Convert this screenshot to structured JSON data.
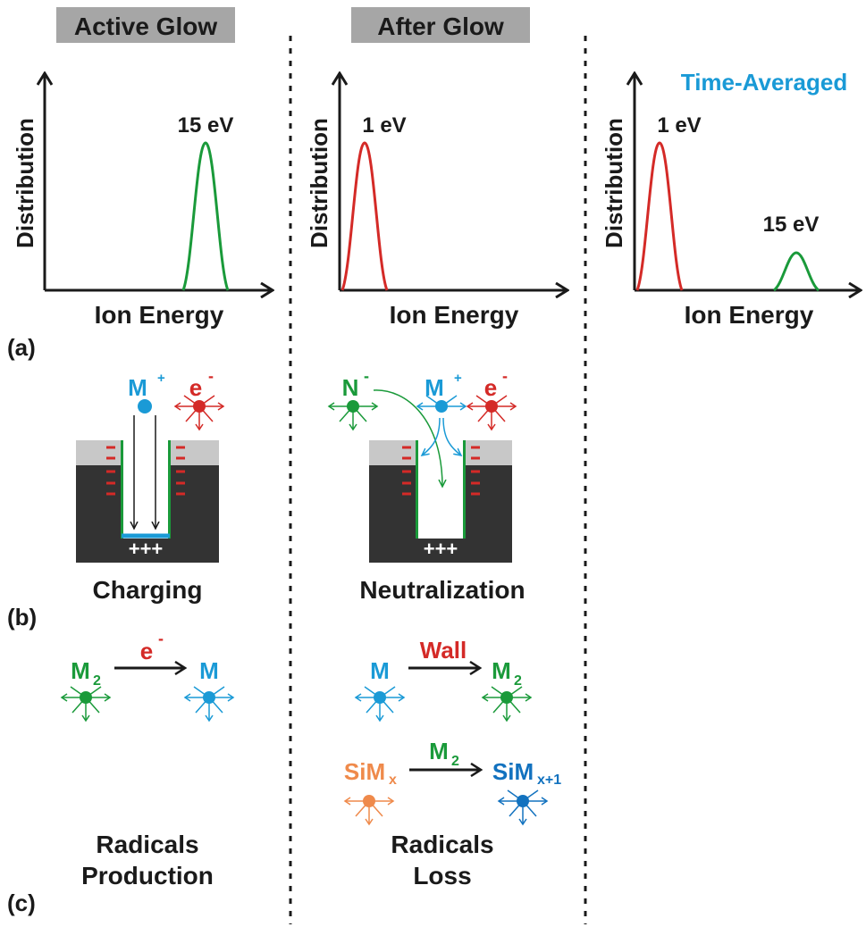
{
  "headers": {
    "active_glow": "Active Glow",
    "after_glow": "After Glow"
  },
  "plots": {
    "active": {
      "ylabel": "Distribution",
      "xlabel": "Ion Energy",
      "peak_label": "15 eV"
    },
    "after": {
      "ylabel": "Distribution",
      "xlabel": "Ion Energy",
      "peak_label": "1 eV"
    },
    "averaged": {
      "title": "Time-Averaged",
      "ylabel": "Distribution",
      "xlabel": "Ion Energy",
      "peak1_label": "1 eV",
      "peak2_label": "15 eV"
    }
  },
  "panel_labels": {
    "a": "(a)",
    "b": "(b)",
    "c": "(c)"
  },
  "charging": {
    "ion": "M",
    "ion_sup": "+",
    "electron": "e",
    "electron_sup": "-",
    "plus": "+++",
    "caption": "Charging"
  },
  "neutralization": {
    "neg_ion": "N",
    "neg_ion_sup": "-",
    "ion": "M",
    "ion_sup": "+",
    "electron": "e",
    "electron_sup": "-",
    "plus": "+++",
    "caption": "Neutralization"
  },
  "production": {
    "reactant": "M",
    "reactant_sub": "2",
    "agent": "e",
    "agent_sup": "-",
    "product": "M",
    "caption_line1": "Radicals",
    "caption_line2": "Production"
  },
  "loss": {
    "r1_reactant": "M",
    "r1_agent": "Wall",
    "r1_product": "M",
    "r1_product_sub": "2",
    "r2_reactant": "SiM",
    "r2_reactant_sub": "x",
    "r2_agent": "M",
    "r2_agent_sub": "2",
    "r2_product": "SiM",
    "r2_product_sub": "x+1",
    "caption_line1": "Radicals",
    "caption_line2": "Loss"
  },
  "colors": {
    "header_bg": "#a6a6a6",
    "text": "#1a1a1a",
    "blue": "#1a9ad6",
    "red": "#d42a27",
    "green": "#1a9a3a",
    "orange": "#ef8a4b",
    "dark_blue": "#1272bf",
    "substrate": "#333333",
    "mask": "#c8c8c8"
  }
}
